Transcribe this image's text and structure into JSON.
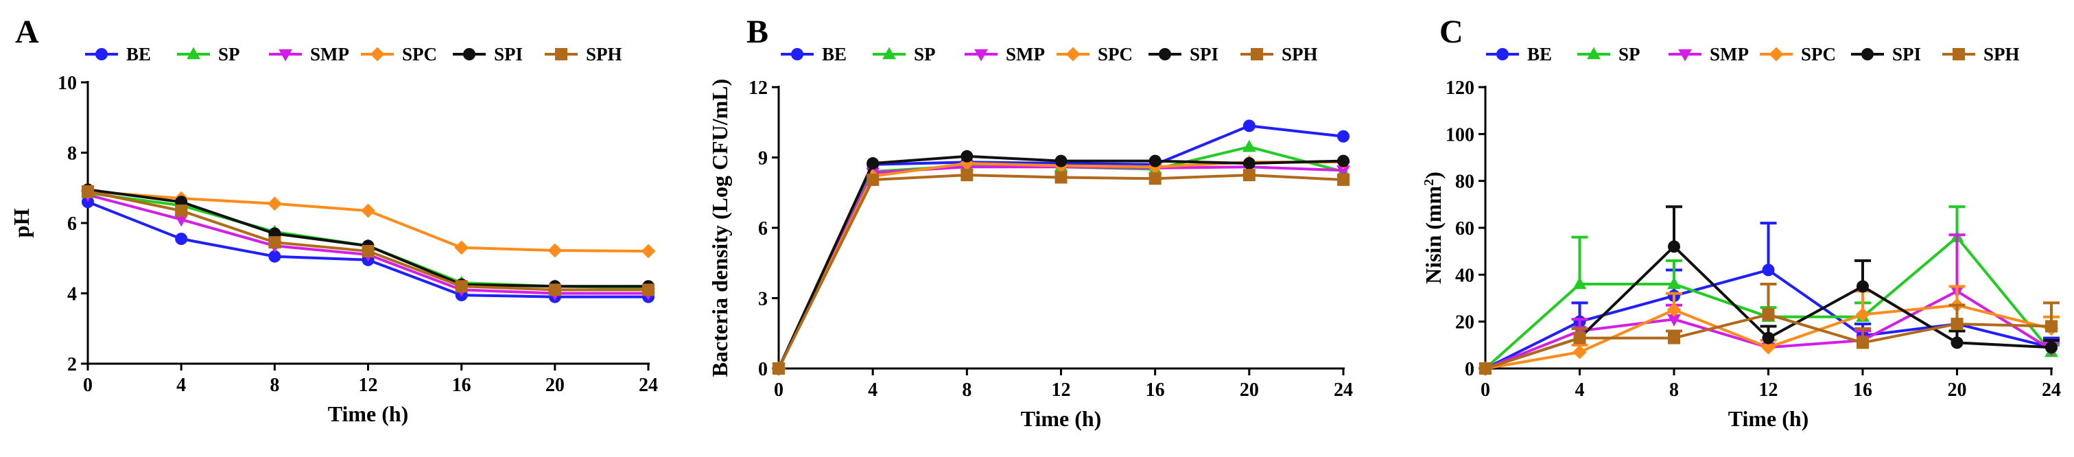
{
  "colors": {
    "BE": "#1f1fff",
    "SP": "#22cc22",
    "SMP": "#d21ee6",
    "SPC": "#ff8c1a",
    "SPI": "#111111",
    "SPH": "#b06a1a"
  },
  "legend_markers": {
    "BE": "circle",
    "SP": "triangle-up",
    "SMP": "triangle-down",
    "SPC": "diamond",
    "SPI": "circle",
    "SPH": "square"
  },
  "chart_data": [
    {
      "type": "line",
      "panel": "A",
      "title": "",
      "xlabel": "Time (h)",
      "ylabel": "pH",
      "x": [
        0,
        4,
        8,
        12,
        16,
        20,
        24
      ],
      "xticks": [
        "0",
        "4",
        "8",
        "12",
        "16",
        "20",
        "24"
      ],
      "xlim": [
        0,
        24
      ],
      "ylim": [
        2,
        10
      ],
      "yticks": [
        "2",
        "4",
        "6",
        "8",
        "10"
      ],
      "legend_position": "top",
      "series": [
        {
          "name": "BE",
          "values": [
            6.6,
            5.55,
            5.05,
            4.95,
            3.95,
            3.9,
            3.9
          ]
        },
        {
          "name": "SP",
          "values": [
            6.85,
            6.5,
            5.75,
            5.35,
            4.3,
            4.2,
            4.15
          ]
        },
        {
          "name": "SMP",
          "values": [
            6.8,
            6.1,
            5.35,
            5.1,
            4.1,
            4.0,
            4.0
          ]
        },
        {
          "name": "SPC",
          "values": [
            6.9,
            6.7,
            6.55,
            6.35,
            5.3,
            5.22,
            5.2
          ]
        },
        {
          "name": "SPI",
          "values": [
            6.95,
            6.6,
            5.7,
            5.35,
            4.25,
            4.2,
            4.2
          ]
        },
        {
          "name": "SPH",
          "values": [
            6.9,
            6.35,
            5.45,
            5.2,
            4.2,
            4.1,
            4.1
          ]
        }
      ]
    },
    {
      "type": "line",
      "panel": "B",
      "title": "",
      "xlabel": "Time (h)",
      "ylabel": "Bacteria density (Log CFU/mL)",
      "x": [
        0,
        4,
        8,
        12,
        16,
        20,
        24
      ],
      "xticks": [
        "0",
        "4",
        "8",
        "12",
        "16",
        "20",
        "24"
      ],
      "xlim": [
        0,
        24
      ],
      "ylim": [
        0,
        12
      ],
      "yticks": [
        "0",
        "3",
        "6",
        "9",
        "12"
      ],
      "legend_position": "top",
      "series": [
        {
          "name": "BE",
          "values": [
            0,
            8.7,
            8.8,
            8.75,
            8.7,
            10.35,
            9.9
          ]
        },
        {
          "name": "SP",
          "values": [
            0,
            8.4,
            8.65,
            8.6,
            8.5,
            9.45,
            8.4
          ]
        },
        {
          "name": "SMP",
          "values": [
            0,
            8.35,
            8.6,
            8.6,
            8.55,
            8.6,
            8.45
          ]
        },
        {
          "name": "SPC",
          "values": [
            0,
            8.2,
            8.75,
            8.65,
            8.6,
            8.8,
            8.8
          ]
        },
        {
          "name": "SPI",
          "values": [
            0,
            8.75,
            9.05,
            8.85,
            8.85,
            8.75,
            8.85
          ]
        },
        {
          "name": "SPH",
          "values": [
            0,
            8.05,
            8.25,
            8.15,
            8.1,
            8.25,
            8.05
          ]
        }
      ]
    },
    {
      "type": "line",
      "panel": "C",
      "title": "",
      "xlabel": "Time (h)",
      "ylabel": "Nisin (mm",
      "ylabel_superscript": "2",
      "ylabel_suffix": ")",
      "x": [
        0,
        4,
        8,
        12,
        16,
        20,
        24
      ],
      "xticks": [
        "0",
        "4",
        "8",
        "12",
        "16",
        "20",
        "24"
      ],
      "xlim": [
        0,
        24
      ],
      "ylim": [
        0,
        120
      ],
      "yticks": [
        "0",
        "20",
        "40",
        "60",
        "80",
        "100",
        "120"
      ],
      "legend_position": "top",
      "series": [
        {
          "name": "BE",
          "values": [
            0,
            20,
            31,
            42,
            14,
            19,
            9
          ],
          "errors": [
            0,
            8,
            11,
            20,
            5,
            8,
            4
          ]
        },
        {
          "name": "SP",
          "values": [
            0,
            36,
            36,
            22,
            22,
            56,
            7
          ],
          "errors": [
            0,
            20,
            10,
            4,
            6,
            13,
            3
          ]
        },
        {
          "name": "SMP",
          "values": [
            0,
            16,
            21,
            9,
            12,
            33,
            8
          ],
          "errors": [
            0,
            5,
            6,
            3,
            4,
            24,
            3
          ]
        },
        {
          "name": "SPC",
          "values": [
            0,
            7,
            25,
            9,
            23,
            27,
            17
          ],
          "errors": [
            0,
            3,
            7,
            3,
            10,
            8,
            5
          ]
        },
        {
          "name": "SPI",
          "values": [
            0,
            13,
            52,
            13,
            35,
            11,
            9
          ],
          "errors": [
            0,
            4,
            17,
            5,
            11,
            5,
            3
          ]
        },
        {
          "name": "SPH",
          "values": [
            0,
            13,
            13,
            23,
            11,
            19,
            18
          ],
          "errors": [
            0,
            4,
            3,
            13,
            6,
            8,
            10
          ]
        }
      ]
    }
  ]
}
